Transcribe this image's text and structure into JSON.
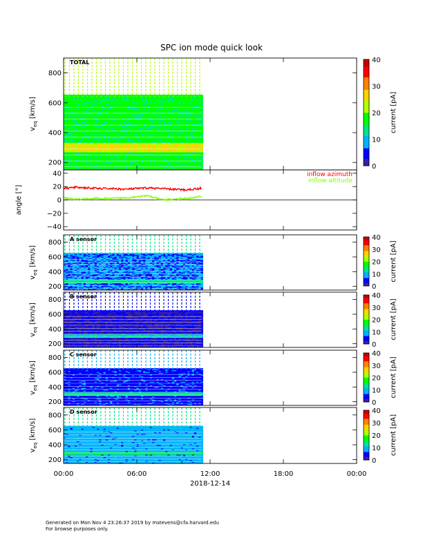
{
  "title": "SPC ion mode quick look",
  "x_axis": {
    "ticks": [
      "00:00",
      "06:00",
      "12:00",
      "18:00",
      "00:00"
    ],
    "tick_hours": [
      0,
      6,
      12,
      18,
      24
    ],
    "range_hours": [
      0,
      24
    ],
    "date_label": "2018-12-14",
    "data_end_hour": 11.3
  },
  "colorbar": {
    "label": "current [pA]",
    "colors": [
      "#3a1f9e",
      "#0000ff",
      "#00b4ff",
      "#00e68c",
      "#00ff00",
      "#b4ff00",
      "#ffd200",
      "#ff8200",
      "#ff0000",
      "#c80000"
    ],
    "ticks_total": [
      "0",
      "10",
      "20",
      "30",
      "40"
    ],
    "ticks_small": [
      "0",
      "10",
      "20",
      "30",
      "40"
    ],
    "range": [
      0,
      40
    ]
  },
  "chart_data": [
    {
      "type": "heatmap",
      "panel_label": "TOTAL",
      "ylabel_main": "v",
      "ylabel_sub": "eq",
      "ylabel_unit": "[km/s]",
      "ylim": [
        150,
        900
      ],
      "yticks": [
        200,
        400,
        600,
        800
      ],
      "ytick_labels": [
        "200",
        "400",
        "600",
        "800"
      ],
      "profile_kms": [
        200,
        240,
        280,
        300,
        330,
        400,
        500,
        600,
        640
      ],
      "profile_pa": [
        8,
        10,
        22,
        30,
        20,
        12,
        10,
        8,
        6
      ]
    },
    {
      "type": "line",
      "ylabel": "angle [°]",
      "ylim": [
        -45,
        45
      ],
      "yticks": [
        -40,
        -20,
        0,
        20,
        40
      ],
      "ytick_labels": [
        "−40",
        "−20",
        "0",
        "20",
        "40"
      ],
      "zero_line": true,
      "series": [
        {
          "name": "inflow azimuth",
          "color": "#ff0000",
          "x_hours": [
            0,
            1,
            2,
            3,
            4,
            5,
            6,
            7,
            8,
            9,
            10,
            11,
            11.3
          ],
          "values": [
            17,
            19,
            18,
            17,
            17,
            16,
            17,
            18,
            17,
            16,
            15,
            17,
            18
          ]
        },
        {
          "name": "inflow altitude",
          "color": "#80ff00",
          "x_hours": [
            0,
            1,
            2,
            3,
            4,
            5,
            6,
            7,
            8,
            9,
            10,
            11,
            11.3
          ],
          "values": [
            3,
            1,
            2,
            2,
            2,
            3,
            5,
            6,
            0,
            1,
            2,
            4,
            6
          ]
        }
      ]
    },
    {
      "type": "heatmap",
      "panel_label": "A sensor",
      "ylabel_main": "v",
      "ylabel_sub": "eq",
      "ylabel_unit": "[km/s]",
      "ylim": [
        150,
        900
      ],
      "yticks": [
        200,
        400,
        600,
        800
      ],
      "ytick_labels": [
        "200",
        "400",
        "600",
        "800"
      ]
    },
    {
      "type": "heatmap",
      "panel_label": "B sensor",
      "ylabel_main": "v",
      "ylabel_sub": "eq",
      "ylabel_unit": "[km/s]",
      "ylim": [
        150,
        900
      ],
      "yticks": [
        200,
        400,
        600,
        800
      ],
      "ytick_labels": [
        "200",
        "400",
        "600",
        "800"
      ]
    },
    {
      "type": "heatmap",
      "panel_label": "C sensor",
      "ylabel_main": "v",
      "ylabel_sub": "eq",
      "ylabel_unit": "[km/s]",
      "ylim": [
        150,
        900
      ],
      "yticks": [
        200,
        400,
        600,
        800
      ],
      "ytick_labels": [
        "200",
        "400",
        "600",
        "800"
      ]
    },
    {
      "type": "heatmap",
      "panel_label": "D sensor",
      "ylabel_main": "v",
      "ylabel_sub": "eq",
      "ylabel_unit": "[km/s]",
      "ylim": [
        150,
        900
      ],
      "yticks": [
        200,
        400,
        600,
        800
      ],
      "ytick_labels": [
        "200",
        "400",
        "600",
        "800"
      ]
    }
  ],
  "footer": {
    "line1": "Generated on Mon Nov  4 23:26:37 2019 by mstevens@cfa.harvard.edu",
    "line2": "For browse purposes only."
  }
}
